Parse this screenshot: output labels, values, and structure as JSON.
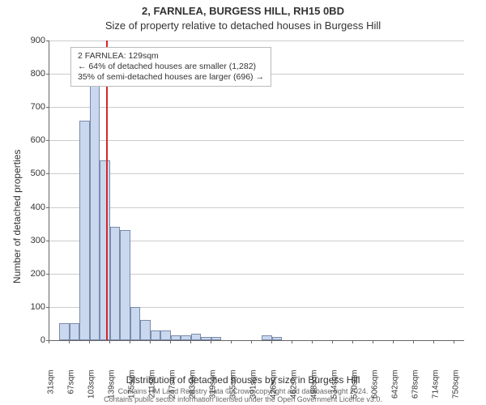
{
  "chart": {
    "type": "histogram",
    "title": "2, FARNLEA, BURGESS HILL, RH15 0BD",
    "subtitle": "Size of property relative to detached houses in Burgess Hill",
    "xlabel": "Distribution of detached houses by size in Burgess Hill",
    "ylabel": "Number of detached properties",
    "title_fontsize": 13,
    "subtitle_fontsize": 13,
    "label_fontsize": 12,
    "tick_fontsize": 11,
    "xtick_fontsize": 10,
    "background_color": "#ffffff",
    "grid_color": "#cccccc",
    "axis_color": "#666666",
    "bar_fill": "#c9d8ef",
    "bar_border": "#7a8aa8",
    "marker_line_color": "#d62728",
    "ylim": [
      0,
      900
    ],
    "ytick_step": 100,
    "yticks": [
      0,
      100,
      200,
      300,
      400,
      500,
      600,
      700,
      800,
      900
    ],
    "xtick_labels": [
      "31sqm",
      "67sqm",
      "103sqm",
      "139sqm",
      "175sqm",
      "211sqm",
      "247sqm",
      "283sqm",
      "319sqm",
      "355sqm",
      "391sqm",
      "426sqm",
      "462sqm",
      "498sqm",
      "534sqm",
      "570sqm",
      "606sqm",
      "642sqm",
      "678sqm",
      "714sqm",
      "750sqm"
    ],
    "bars": [
      {
        "x_label": "31sqm",
        "value": 0
      },
      {
        "x_label": "49sqm",
        "value": 50
      },
      {
        "x_label": "67sqm",
        "value": 50
      },
      {
        "x_label": "85sqm",
        "value": 660
      },
      {
        "x_label": "103sqm",
        "value": 800
      },
      {
        "x_label": "121sqm",
        "value": 540
      },
      {
        "x_label": "139sqm",
        "value": 340
      },
      {
        "x_label": "157sqm",
        "value": 330
      },
      {
        "x_label": "175sqm",
        "value": 100
      },
      {
        "x_label": "193sqm",
        "value": 60
      },
      {
        "x_label": "211sqm",
        "value": 30
      },
      {
        "x_label": "229sqm",
        "value": 30
      },
      {
        "x_label": "247sqm",
        "value": 15
      },
      {
        "x_label": "265sqm",
        "value": 15
      },
      {
        "x_label": "283sqm",
        "value": 20
      },
      {
        "x_label": "301sqm",
        "value": 10
      },
      {
        "x_label": "319sqm",
        "value": 10
      },
      {
        "x_label": "337sqm",
        "value": 0
      },
      {
        "x_label": "355sqm",
        "value": 0
      },
      {
        "x_label": "373sqm",
        "value": 0
      },
      {
        "x_label": "391sqm",
        "value": 0
      },
      {
        "x_label": "409sqm",
        "value": 15
      },
      {
        "x_label": "426sqm",
        "value": 10
      },
      {
        "x_label": "444sqm",
        "value": 0
      },
      {
        "x_label": "462sqm",
        "value": 0
      },
      {
        "x_label": "480sqm",
        "value": 0
      },
      {
        "x_label": "498sqm",
        "value": 0
      },
      {
        "x_label": "516sqm",
        "value": 0
      },
      {
        "x_label": "534sqm",
        "value": 0
      },
      {
        "x_label": "552sqm",
        "value": 0
      },
      {
        "x_label": "570sqm",
        "value": 0
      },
      {
        "x_label": "588sqm",
        "value": 0
      },
      {
        "x_label": "606sqm",
        "value": 0
      },
      {
        "x_label": "624sqm",
        "value": 0
      },
      {
        "x_label": "642sqm",
        "value": 0
      },
      {
        "x_label": "660sqm",
        "value": 0
      },
      {
        "x_label": "678sqm",
        "value": 0
      },
      {
        "x_label": "696sqm",
        "value": 0
      },
      {
        "x_label": "714sqm",
        "value": 0
      },
      {
        "x_label": "732sqm",
        "value": 0
      },
      {
        "x_label": "750sqm",
        "value": 0
      }
    ],
    "bar_count": 41,
    "marker": {
      "value_sqm": 129,
      "x_min": 31,
      "x_max": 750
    },
    "callout": {
      "line1": "2 FARNLEA: 129sqm",
      "line2": "← 64% of detached houses are smaller (1,282)",
      "line3": "35% of semi-detached houses are larger (696) →"
    },
    "footer_line1": "Contains HM Land Registry data © Crown copyright and database right 2024.",
    "footer_line2": "Contains public sector information licensed under the Open Government Licence v3.0."
  }
}
